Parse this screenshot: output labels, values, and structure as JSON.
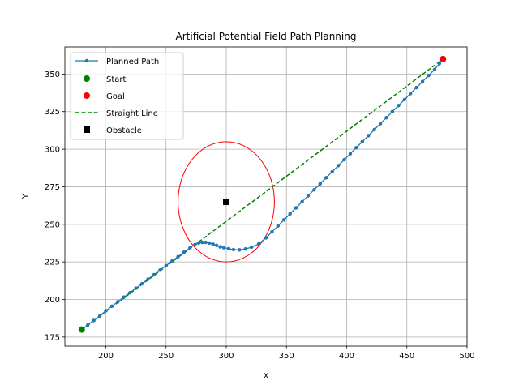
{
  "chart_data": {
    "type": "line",
    "title": "Artificial Potential Field Path Planning",
    "xlabel": "X",
    "ylabel": "Y",
    "xlim": [
      166,
      500
    ],
    "ylim": [
      169,
      368
    ],
    "xticks": [
      200,
      250,
      300,
      350,
      400,
      450,
      500
    ],
    "yticks": [
      175,
      200,
      225,
      250,
      275,
      300,
      325,
      350
    ],
    "grid": true,
    "legend_position": "top-left",
    "legend": [
      "Planned Path",
      "Start",
      "Goal",
      "Straight Line",
      "Obstacle"
    ],
    "series": [
      {
        "name": "Planned Path",
        "kind": "line-marker",
        "color": "#1f77b4",
        "x": [
          180,
          185,
          190,
          195,
          200,
          205,
          210,
          215,
          220,
          225,
          230,
          235,
          240,
          245,
          250,
          255,
          260,
          265,
          270,
          274,
          277,
          280,
          283,
          286,
          289,
          292,
          295,
          298,
          302,
          306,
          311,
          316,
          321,
          327,
          333,
          338,
          343,
          348,
          353,
          358,
          363,
          368,
          373,
          378,
          383,
          388,
          393,
          398,
          403,
          408,
          413,
          418,
          423,
          428,
          433,
          438,
          443,
          448,
          453,
          458,
          463,
          468,
          473,
          477,
          480
        ],
        "y": [
          180,
          183,
          186,
          189,
          192.5,
          195.5,
          198.5,
          201.5,
          204.5,
          207.5,
          210.5,
          213.5,
          216.5,
          219.5,
          222.5,
          225.5,
          228.5,
          231.5,
          234.5,
          236.5,
          237.5,
          238,
          238,
          237.5,
          236.8,
          236,
          235,
          234.5,
          233.8,
          233.2,
          233,
          233.6,
          234.8,
          237,
          241,
          245,
          249,
          253,
          257,
          261,
          265,
          269,
          273,
          277,
          281,
          285,
          289,
          293,
          297,
          301,
          305,
          309,
          313,
          317,
          321,
          325,
          329,
          333,
          337,
          341,
          345,
          349,
          353,
          357,
          360
        ]
      },
      {
        "name": "Start",
        "kind": "point",
        "color": "#008000",
        "x": [
          180
        ],
        "y": [
          180
        ]
      },
      {
        "name": "Goal",
        "kind": "point",
        "color": "#ff0000",
        "x": [
          480
        ],
        "y": [
          360
        ]
      },
      {
        "name": "Straight Line",
        "kind": "dashed-line",
        "color": "#008000",
        "x": [
          180,
          480
        ],
        "y": [
          180,
          360
        ]
      },
      {
        "name": "Obstacle",
        "kind": "square",
        "color": "#000000",
        "x": [
          300
        ],
        "y": [
          265
        ]
      }
    ],
    "annotations": [
      {
        "kind": "circle",
        "color": "#ff0000",
        "cx": 300,
        "cy": 265,
        "r": 40
      }
    ]
  }
}
